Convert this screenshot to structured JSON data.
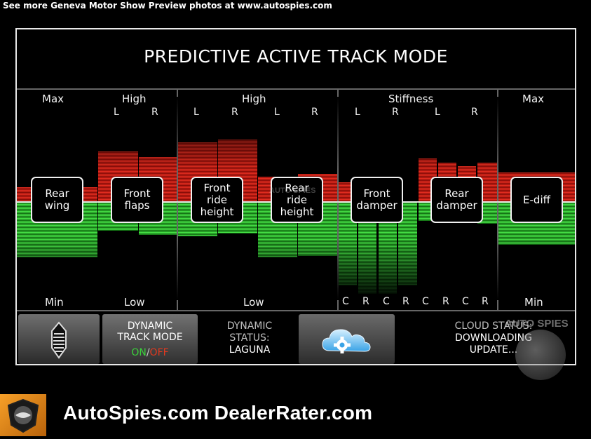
{
  "caption": "See more Geneva Motor Show Preview photos at www.autospies.com",
  "title": "PREDICTIVE ACTIVE TRACK MODE",
  "columns": {
    "max_left": "Max",
    "high_flaps": "High",
    "high_ride": "High",
    "stiffness": "Stiffness",
    "max_right": "Max",
    "min_left": "Min",
    "low_flaps": "Low",
    "low_ride": "Low",
    "min_right": "Min"
  },
  "lr": {
    "l": "L",
    "r": "R"
  },
  "cr": {
    "c": "C",
    "r": "R"
  },
  "controls": {
    "rear_wing": "Rear\nwing",
    "front_flaps": "Front\nflaps",
    "front_ride_height": "Front\nride\nheight",
    "rear_ride_height": "Rear\nride\nheight",
    "front_damper": "Front\ndamper",
    "rear_damper": "Rear\ndamper",
    "e_diff": "E-diff"
  },
  "bottom": {
    "dtm_line1": "DYNAMIC",
    "dtm_line2": "TRACK MODE",
    "dtm_on": "ON",
    "dtm_slash": "/",
    "dtm_off": "OFF",
    "dyn_line1": "DYNAMIC",
    "dyn_line2": "STATUS:",
    "dyn_line3": "LAGUNA",
    "cloud_line1": "CLOUD STATUS:",
    "cloud_line2": "DOWNLOADING",
    "cloud_line3": "UPDATE..."
  },
  "footer": {
    "text": "AutoSpies.com  DealerRater.com"
  },
  "watermark": {
    "text": "AUTO SPIES",
    "center_text": "AUTO SPIES"
  },
  "colors": {
    "red": "#e02c1f",
    "green": "#45df45",
    "on": "#3bd13b",
    "off": "#e0391f",
    "status_text": "#bfbfbf"
  }
}
